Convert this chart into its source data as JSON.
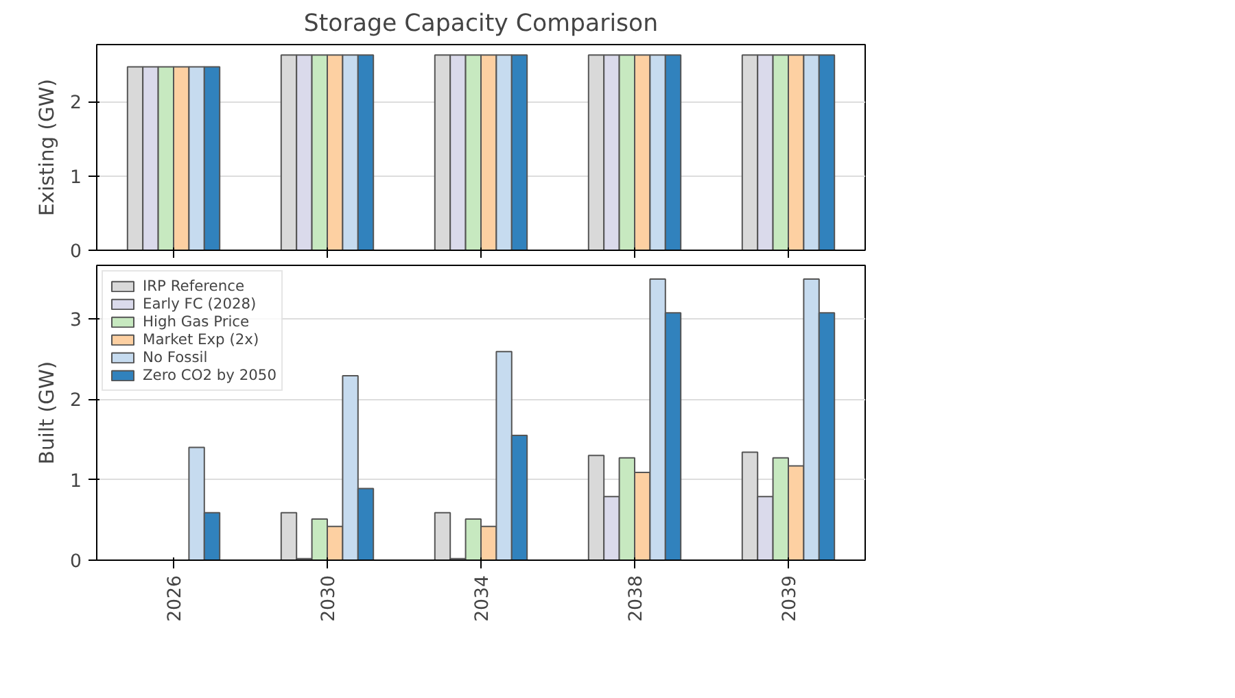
{
  "chart_data": [
    {
      "type": "bar",
      "title": "Storage Capacity Comparison",
      "ylabel": "Existing (GW)",
      "categories": [
        "2026",
        "2030",
        "2034",
        "2038",
        "2039"
      ],
      "ylim": [
        0,
        2.77
      ],
      "yticks": [
        0,
        1,
        2
      ],
      "grid": "y",
      "tick_labels": "y",
      "series": [
        {
          "color": "#d9d9d9",
          "values": [
            2.47,
            2.63,
            2.63,
            2.63,
            2.63
          ]
        },
        {
          "color": "#dadaeb",
          "values": [
            2.47,
            2.63,
            2.63,
            2.63,
            2.63
          ]
        },
        {
          "color": "#c7e9c0",
          "values": [
            2.47,
            2.63,
            2.63,
            2.63,
            2.63
          ]
        },
        {
          "color": "#fdd0a2",
          "values": [
            2.47,
            2.63,
            2.63,
            2.63,
            2.63
          ]
        },
        {
          "color": "#c6dbef",
          "values": [
            2.47,
            2.63,
            2.63,
            2.63,
            2.63
          ]
        },
        {
          "color": "#3182bd",
          "values": [
            2.47,
            2.63,
            2.63,
            2.63,
            2.63
          ]
        }
      ]
    },
    {
      "type": "bar",
      "ylabel": "Built (GW)",
      "categories": [
        "2026",
        "2030",
        "2034",
        "2038",
        "2039"
      ],
      "ylim": [
        0,
        3.66
      ],
      "yticks": [
        0,
        1,
        2,
        3
      ],
      "grid": "y",
      "legend": "top left",
      "series": [
        {
          "name": "IRP Reference",
          "color": "#d9d9d9",
          "values": [
            null,
            0.59,
            0.59,
            1.3,
            1.34
          ]
        },
        {
          "name": "Early FC (2028)",
          "color": "#dadaeb",
          "values": [
            null,
            0.02,
            0.02,
            0.79,
            0.79
          ]
        },
        {
          "name": "High Gas Price",
          "color": "#c7e9c0",
          "values": [
            null,
            0.51,
            0.51,
            1.27,
            1.27
          ]
        },
        {
          "name": "Market Exp (2x)",
          "color": "#fdd0a2",
          "values": [
            null,
            0.42,
            0.42,
            1.09,
            1.17
          ]
        },
        {
          "name": "No Fossil",
          "color": "#c6dbef",
          "values": [
            1.4,
            2.29,
            2.59,
            3.49,
            3.49
          ]
        },
        {
          "name": "Zero CO2 by 2050",
          "color": "#3182bd",
          "values": [
            0.59,
            0.89,
            1.55,
            3.07,
            3.07
          ]
        }
      ]
    }
  ]
}
